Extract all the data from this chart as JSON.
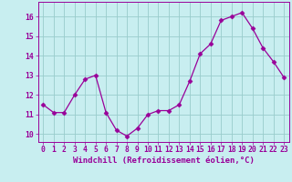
{
  "x": [
    0,
    1,
    2,
    3,
    4,
    5,
    6,
    7,
    8,
    9,
    10,
    11,
    12,
    13,
    14,
    15,
    16,
    17,
    18,
    19,
    20,
    21,
    22,
    23
  ],
  "y": [
    11.5,
    11.1,
    11.1,
    12.0,
    12.8,
    13.0,
    11.1,
    10.2,
    9.9,
    10.3,
    11.0,
    11.2,
    11.2,
    11.5,
    12.7,
    14.1,
    14.6,
    15.8,
    16.0,
    16.2,
    15.4,
    14.4,
    13.7,
    12.9
  ],
  "line_color": "#990099",
  "marker": "D",
  "marker_size": 2.5,
  "bg_color": "#c8eef0",
  "grid_color": "#99cccc",
  "xlabel": "Windchill (Refroidissement éolien,°C)",
  "xlabel_fontsize": 6.5,
  "ylabel_ticks": [
    10,
    11,
    12,
    13,
    14,
    15,
    16
  ],
  "xlim": [
    -0.5,
    23.5
  ],
  "ylim": [
    9.6,
    16.75
  ],
  "xtick_labels": [
    "0",
    "1",
    "2",
    "3",
    "4",
    "5",
    "6",
    "7",
    "8",
    "9",
    "10",
    "11",
    "12",
    "13",
    "14",
    "15",
    "16",
    "17",
    "18",
    "19",
    "20",
    "21",
    "22",
    "23"
  ],
  "tick_fontsize": 5.8,
  "line_width": 0.9
}
